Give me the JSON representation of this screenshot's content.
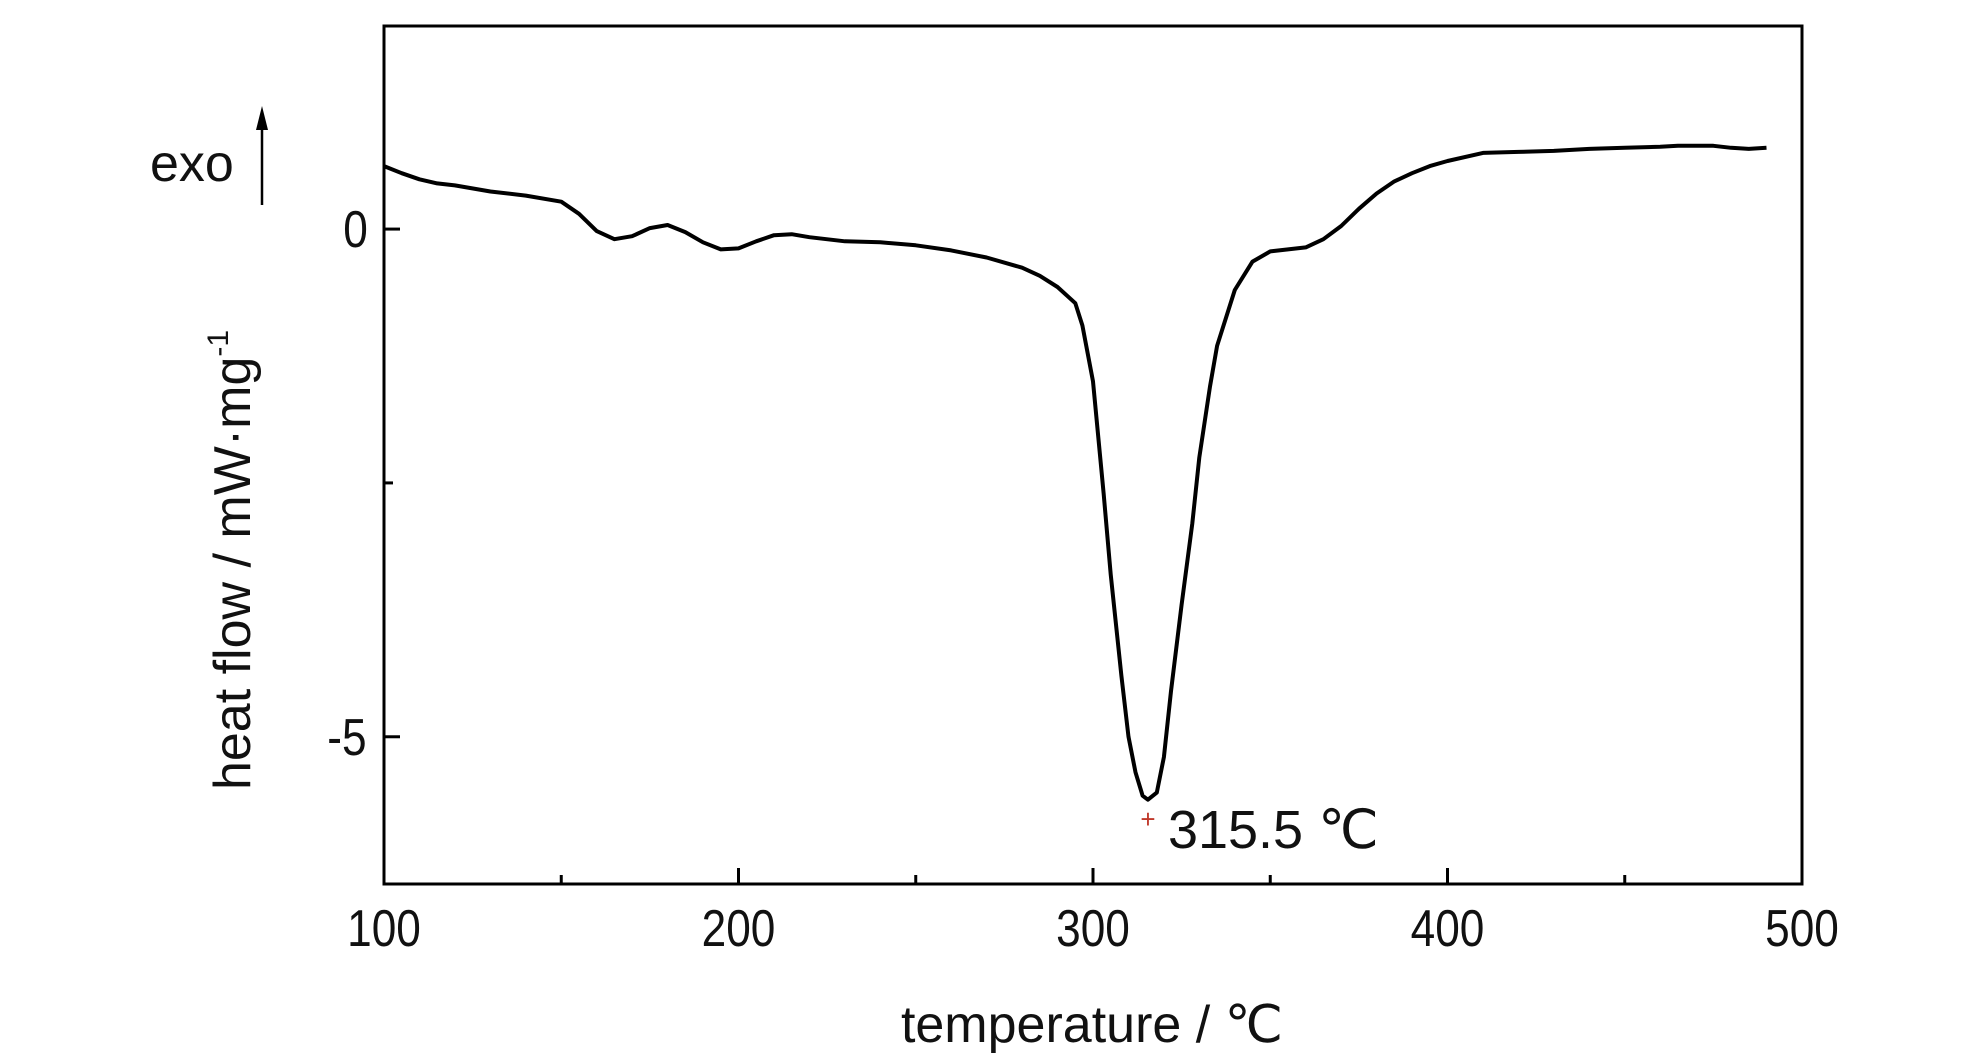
{
  "chart_data": {
    "type": "line",
    "title": "",
    "xlabel": "temperature / ℃",
    "ylabel": "heat flow / mW·mg",
    "ylabel_superscript": "-1",
    "exo_label": "exo",
    "xlim": [
      100,
      500
    ],
    "ylim": [
      -6.45,
      2.0
    ],
    "x_ticks": [
      100,
      200,
      300,
      400,
      500
    ],
    "x_tick_labels": [
      "100",
      "200",
      "300",
      "400",
      "500"
    ],
    "y_ticks": [
      0,
      -5
    ],
    "y_tick_labels": [
      "0",
      "-5"
    ],
    "grid": false,
    "series": [
      {
        "color": "#000000",
        "x": [
          100,
          105,
          110,
          115,
          120,
          130,
          140,
          150,
          155,
          160,
          165,
          170,
          175,
          180,
          185,
          190,
          195,
          200,
          205,
          210,
          215,
          220,
          230,
          240,
          250,
          260,
          270,
          280,
          285,
          290,
          295,
          297,
          300,
          303,
          305,
          308,
          310,
          312,
          314,
          315.5,
          318,
          320,
          322,
          325,
          328,
          330,
          333,
          335,
          340,
          345,
          350,
          355,
          360,
          365,
          370,
          375,
          380,
          385,
          390,
          395,
          400,
          410,
          420,
          430,
          440,
          450,
          460,
          465,
          470,
          475,
          480,
          485,
          490
        ],
        "y": [
          0.62,
          0.55,
          0.49,
          0.45,
          0.43,
          0.37,
          0.33,
          0.27,
          0.15,
          -0.02,
          -0.1,
          -0.07,
          0.01,
          0.04,
          -0.03,
          -0.13,
          -0.2,
          -0.19,
          -0.12,
          -0.06,
          -0.05,
          -0.08,
          -0.12,
          -0.13,
          -0.16,
          -0.21,
          -0.28,
          -0.38,
          -0.46,
          -0.57,
          -0.73,
          -0.95,
          -1.5,
          -2.6,
          -3.4,
          -4.4,
          -5.0,
          -5.35,
          -5.58,
          -5.62,
          -5.55,
          -5.2,
          -4.55,
          -3.7,
          -2.9,
          -2.25,
          -1.55,
          -1.15,
          -0.6,
          -0.32,
          -0.22,
          -0.2,
          -0.18,
          -0.1,
          0.03,
          0.2,
          0.35,
          0.47,
          0.55,
          0.62,
          0.67,
          0.75,
          0.76,
          0.77,
          0.79,
          0.8,
          0.81,
          0.82,
          0.82,
          0.82,
          0.8,
          0.79,
          0.8
        ]
      }
    ],
    "annotations": [
      {
        "text": "315.5 ℃",
        "x": 315.5,
        "y": -5.82,
        "marker": "+",
        "marker_color": "#c0392b"
      }
    ]
  }
}
